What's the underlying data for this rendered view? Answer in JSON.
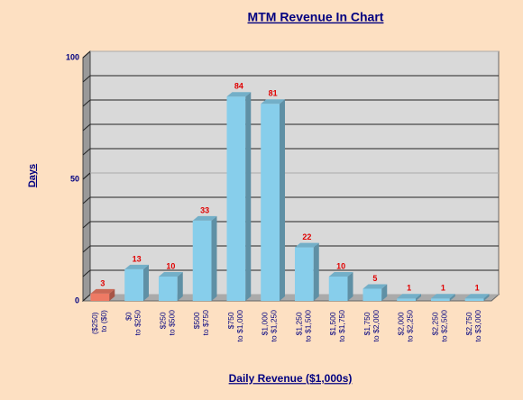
{
  "chart_data": {
    "type": "bar3d",
    "title": "MTM Revenue In Chart",
    "x_label": "Daily Revenue ($1,000s)",
    "y_label": "Days",
    "categories": [
      "($250) to ($0)",
      "$0 to $250",
      "$250 to $500",
      "$500 to $750",
      "$750 to $1,000",
      "$1,000 to $1,250",
      "$1,250 to $1,500",
      "$1,500 to $1,750",
      "$1,750 to $2,000",
      "$2,000 to $2,250",
      "$2,250 to $2,500",
      "$2,750 to $3,000"
    ],
    "values": [
      3,
      13,
      10,
      33,
      84,
      81,
      22,
      10,
      5,
      1,
      1,
      1
    ],
    "colors": [
      "#ee7a64",
      "#87ceeb",
      "#87ceeb",
      "#87ceeb",
      "#87ceeb",
      "#87ceeb",
      "#87ceeb",
      "#87ceeb",
      "#87ceeb",
      "#87ceeb",
      "#87ceeb",
      "#87ceeb"
    ],
    "ylim": [
      0,
      100
    ],
    "yticks": [
      0,
      50,
      100
    ],
    "grid": true,
    "grid_step": 10
  }
}
